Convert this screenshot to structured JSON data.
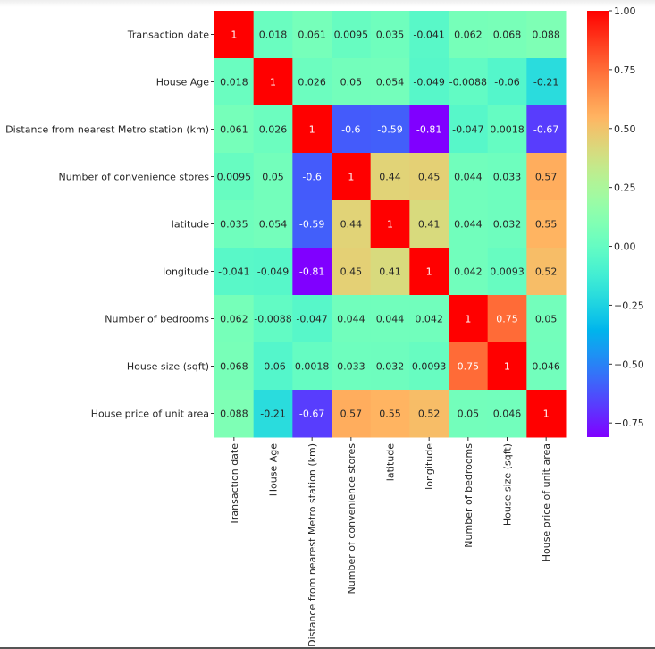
{
  "chart_data": {
    "type": "heatmap",
    "colormap": "rainbow",
    "labels": [
      "Transaction date",
      "House Age",
      "Distance from nearest Metro station (km)",
      "Number of convenience stores",
      "latitude",
      "longitude",
      "Number of bedrooms",
      "House size (sqft)",
      "House price of unit area"
    ],
    "values": [
      [
        1,
        0.018,
        0.061,
        0.0095,
        0.035,
        -0.041,
        0.062,
        0.068,
        0.088
      ],
      [
        0.018,
        1,
        0.026,
        0.05,
        0.054,
        -0.049,
        -0.0088,
        -0.06,
        -0.21
      ],
      [
        0.061,
        0.026,
        1,
        -0.6,
        -0.59,
        -0.81,
        -0.047,
        0.0018,
        -0.67
      ],
      [
        0.0095,
        0.05,
        -0.6,
        1,
        0.44,
        0.45,
        0.044,
        0.033,
        0.57
      ],
      [
        0.035,
        0.054,
        -0.59,
        0.44,
        1,
        0.41,
        0.044,
        0.032,
        0.55
      ],
      [
        -0.041,
        -0.049,
        -0.81,
        0.45,
        0.41,
        1,
        0.042,
        0.0093,
        0.52
      ],
      [
        0.062,
        -0.0088,
        -0.047,
        0.044,
        0.044,
        0.042,
        1,
        0.75,
        0.05
      ],
      [
        0.068,
        -0.06,
        0.0018,
        0.033,
        0.032,
        0.0093,
        0.75,
        1,
        0.046
      ],
      [
        0.088,
        -0.21,
        -0.67,
        0.57,
        0.55,
        0.52,
        0.05,
        0.046,
        1
      ]
    ],
    "annot": true,
    "colorbar": {
      "range": [
        -0.81,
        1.0
      ],
      "ticks": [
        1.0,
        0.75,
        0.5,
        0.25,
        0.0,
        -0.25,
        -0.5,
        -0.75
      ],
      "tick_labels": [
        "1.00",
        "0.75",
        "0.50",
        "0.25",
        "0.00",
        "−0.25",
        "−0.50",
        "−0.75"
      ]
    }
  }
}
